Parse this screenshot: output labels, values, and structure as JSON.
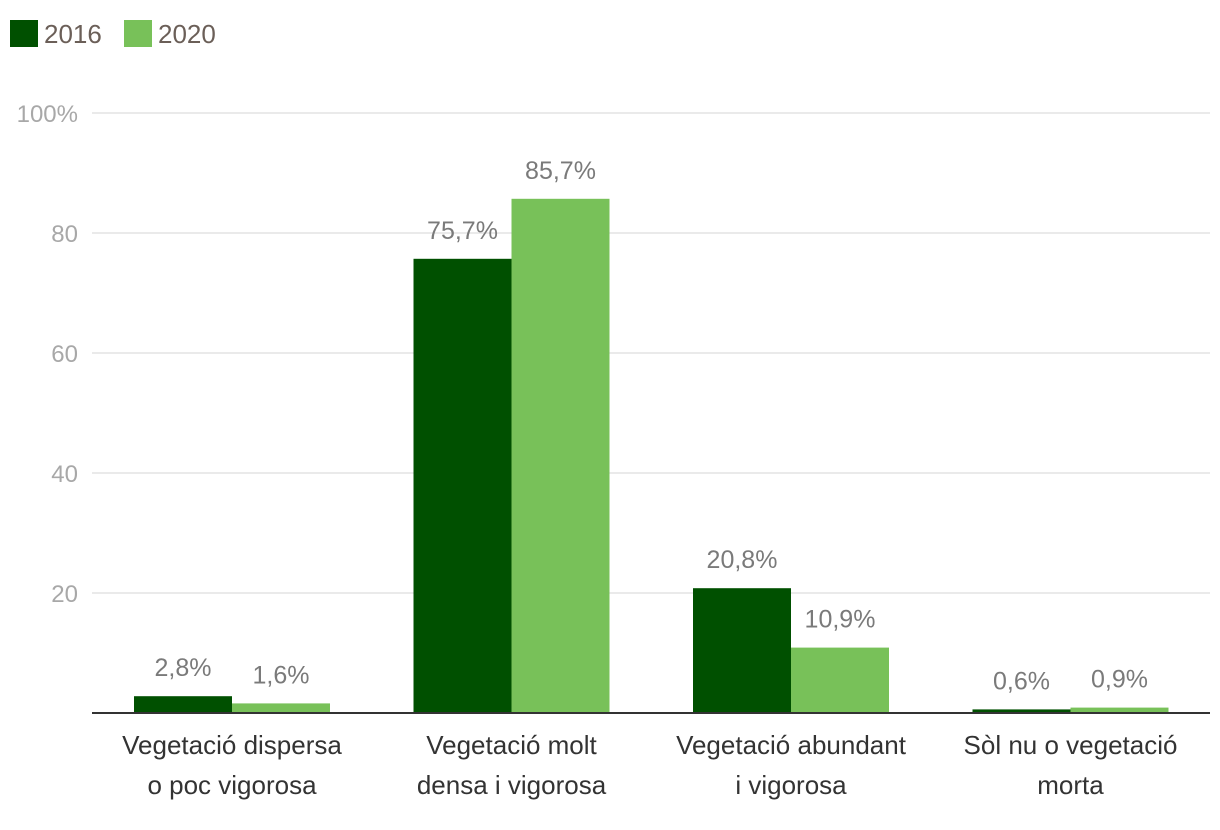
{
  "chart_data": {
    "type": "bar",
    "categories": [
      [
        "Vegetació dispersa",
        "o poc vigorosa"
      ],
      [
        "Vegetació molt",
        "densa i vigorosa"
      ],
      [
        "Vegetació abundant",
        "i vigorosa"
      ],
      [
        "Sòl nu o vegetació",
        "morta"
      ]
    ],
    "series": [
      {
        "name": "2016",
        "color": "#005000",
        "values": [
          2.8,
          75.7,
          20.8,
          0.6
        ],
        "labels": [
          "2,8%",
          "75,7%",
          "20,8%",
          "0,6%"
        ]
      },
      {
        "name": "2020",
        "color": "#78c159",
        "values": [
          1.6,
          85.7,
          10.9,
          0.9
        ],
        "labels": [
          "1,6%",
          "85,7%",
          "10,9%",
          "0,9%"
        ]
      }
    ],
    "yticks": [
      {
        "value": 20,
        "label": "20"
      },
      {
        "value": 40,
        "label": "40"
      },
      {
        "value": 60,
        "label": "60"
      },
      {
        "value": 80,
        "label": "80"
      },
      {
        "value": 100,
        "label": "100%"
      }
    ],
    "ylim": [
      0,
      100
    ],
    "grid": true,
    "legend_position": "top-left"
  }
}
